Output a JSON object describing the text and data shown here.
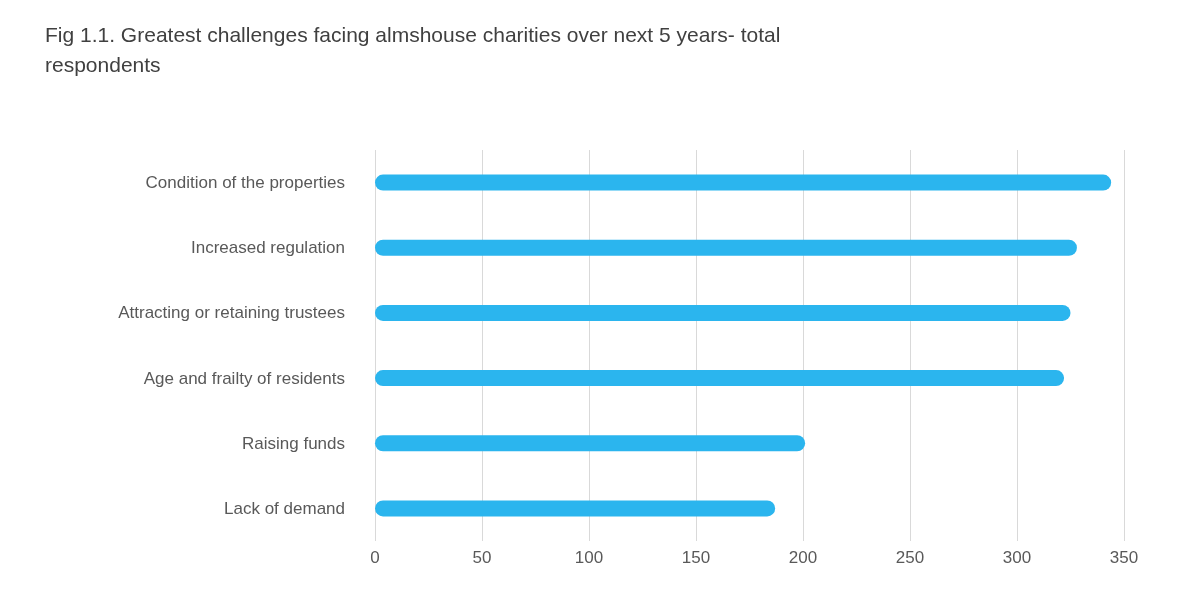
{
  "chart_data": {
    "type": "bar",
    "orientation": "horizontal",
    "title": "Fig 1.1. Greatest challenges facing almshouse charities over next 5 years- total respondents",
    "categories": [
      "Condition of the properties",
      "Increased regulation",
      "Attracting or retaining trustees",
      "Age and frailty of residents",
      "Raising funds",
      "Lack of demand"
    ],
    "values": [
      344,
      328,
      325,
      322,
      201,
      187
    ],
    "color": "#2bb5ee",
    "xlim": [
      0,
      350
    ],
    "xticks": [
      0,
      50,
      100,
      150,
      200,
      250,
      300,
      350
    ],
    "grid": true
  }
}
